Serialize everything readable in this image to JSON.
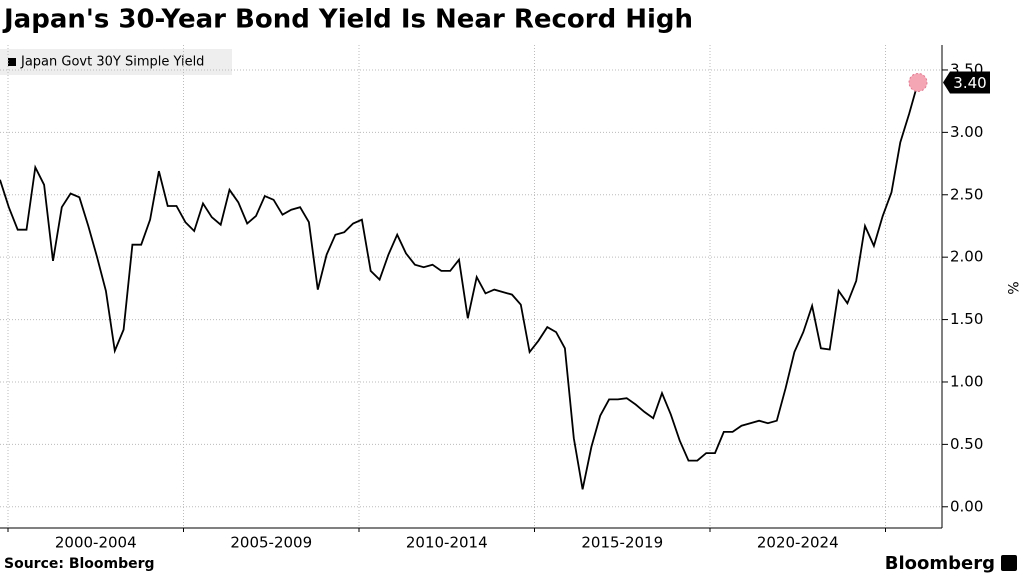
{
  "chart_data": {
    "type": "line",
    "title": "Japan's 30-Year Bond Yield Is Near Record High",
    "y_label": "%",
    "source": "Source: Bloomberg",
    "brand": "Bloomberg",
    "x_labels": [
      "2000-2004",
      "2005-2009",
      "2010-2014",
      "2015-2019",
      "2020-2024"
    ],
    "ylim": [
      -0.17,
      3.7
    ],
    "yticks": [
      {
        "value": 0,
        "label": "0.00"
      },
      {
        "value": 0.5,
        "label": "0.50"
      },
      {
        "value": 1,
        "label": "1.00"
      },
      {
        "value": 1.5,
        "label": "1.50"
      },
      {
        "value": 2,
        "label": "2.00"
      },
      {
        "value": 2.5,
        "label": "2.50"
      },
      {
        "value": 3,
        "label": "3.00"
      },
      {
        "value": 3.5,
        "label": "3.50"
      }
    ],
    "grid": true,
    "legend": "top-left",
    "series": [
      {
        "name": "Japan Govt 30Y Simple Yield",
        "color": "#000000",
        "values": [
          2.62,
          2.4,
          2.22,
          2.22,
          2.72,
          2.58,
          1.97,
          2.4,
          2.51,
          2.48,
          2.25,
          2.0,
          1.73,
          1.25,
          1.42,
          2.1,
          2.1,
          2.3,
          2.69,
          2.41,
          2.41,
          2.28,
          2.21,
          2.43,
          2.32,
          2.26,
          2.54,
          2.44,
          2.27,
          2.33,
          2.49,
          2.46,
          2.34,
          2.38,
          2.4,
          2.28,
          1.74,
          2.02,
          2.18,
          2.2,
          2.27,
          2.3,
          1.89,
          1.82,
          2.02,
          2.18,
          2.03,
          1.94,
          1.92,
          1.94,
          1.89,
          1.89,
          1.98,
          1.51,
          1.84,
          1.71,
          1.74,
          1.72,
          1.7,
          1.62,
          1.24,
          1.33,
          1.44,
          1.4,
          1.27,
          0.55,
          0.14,
          0.48,
          0.73,
          0.86,
          0.86,
          0.87,
          0.82,
          0.76,
          0.71,
          0.91,
          0.74,
          0.53,
          0.37,
          0.37,
          0.43,
          0.43,
          0.6,
          0.6,
          0.65,
          0.67,
          0.69,
          0.67,
          0.69,
          0.95,
          1.24,
          1.4,
          1.61,
          1.27,
          1.26,
          1.73,
          1.63,
          1.81,
          2.25,
          2.09,
          2.33,
          2.52,
          2.92,
          3.15,
          3.4
        ],
        "last_value_label": "3.40"
      }
    ]
  }
}
